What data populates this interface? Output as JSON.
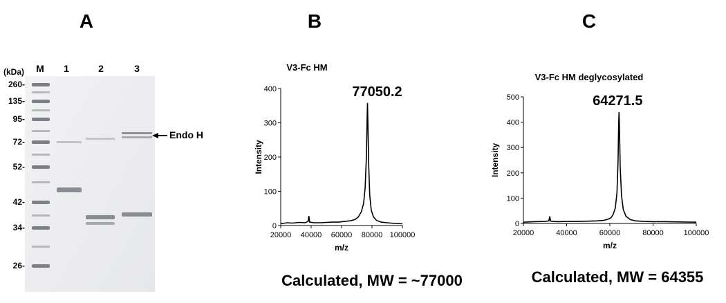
{
  "panel_labels": [
    "A",
    "B",
    "C"
  ],
  "gel": {
    "unit_label": "(kDa)",
    "lanes": [
      "M",
      "1",
      "2",
      "3"
    ],
    "markers": [
      "260-",
      "135-",
      "95-",
      "72-",
      "52-",
      "42-",
      "34-",
      "26-"
    ],
    "annotation": "Endo H"
  },
  "chart_data": [
    {
      "type": "line",
      "title": "V3-Fc HM",
      "x_label": "m/z",
      "y_label": "Intensity",
      "annotation": "77050.2",
      "caption": "Calculated, MW = ~77000",
      "color": "#000000",
      "xlim": [
        20000,
        100000
      ],
      "xticks": [
        20000,
        40000,
        60000,
        80000,
        100000
      ],
      "ylim": [
        0,
        400
      ],
      "yticks": [
        0,
        100,
        200,
        300,
        400
      ],
      "x": [
        20000,
        24000,
        28000,
        32000,
        36000,
        38000,
        38500,
        39000,
        42000,
        46000,
        50000,
        54000,
        58000,
        62000,
        66000,
        69000,
        71000,
        73000,
        74500,
        75500,
        76300,
        76800,
        77050,
        77300,
        77800,
        78500,
        79500,
        81000,
        83000,
        86000,
        90000,
        95000,
        100000
      ],
      "values": [
        5,
        8,
        7,
        9,
        8,
        12,
        28,
        10,
        8,
        8,
        9,
        10,
        10,
        12,
        14,
        18,
        25,
        40,
        65,
        110,
        200,
        320,
        358,
        300,
        180,
        90,
        45,
        25,
        15,
        10,
        8,
        6,
        5
      ]
    },
    {
      "type": "line",
      "title": "V3-Fc HM deglycosylated",
      "x_label": "m/z",
      "y_label": "Intensity",
      "annotation": "64271.5",
      "caption": "Calculated, MW = 64355",
      "color": "#000000",
      "xlim": [
        20000,
        100000
      ],
      "xticks": [
        20000,
        40000,
        60000,
        80000,
        100000
      ],
      "ylim": [
        0,
        500
      ],
      "yticks": [
        0,
        100,
        200,
        300,
        400,
        500
      ],
      "x": [
        20000,
        25000,
        30000,
        31800,
        32200,
        32600,
        36000,
        40000,
        45000,
        50000,
        54000,
        57000,
        59000,
        60500,
        61500,
        62500,
        63300,
        63800,
        64100,
        64270,
        64450,
        64800,
        65400,
        66200,
        67500,
        69500,
        72000,
        76000,
        80000,
        86000,
        92000,
        100000
      ],
      "values": [
        5,
        7,
        8,
        10,
        28,
        9,
        7,
        8,
        8,
        9,
        10,
        12,
        16,
        22,
        35,
        60,
        120,
        250,
        400,
        440,
        380,
        220,
        110,
        55,
        28,
        15,
        10,
        8,
        7,
        7,
        6,
        5
      ]
    }
  ]
}
